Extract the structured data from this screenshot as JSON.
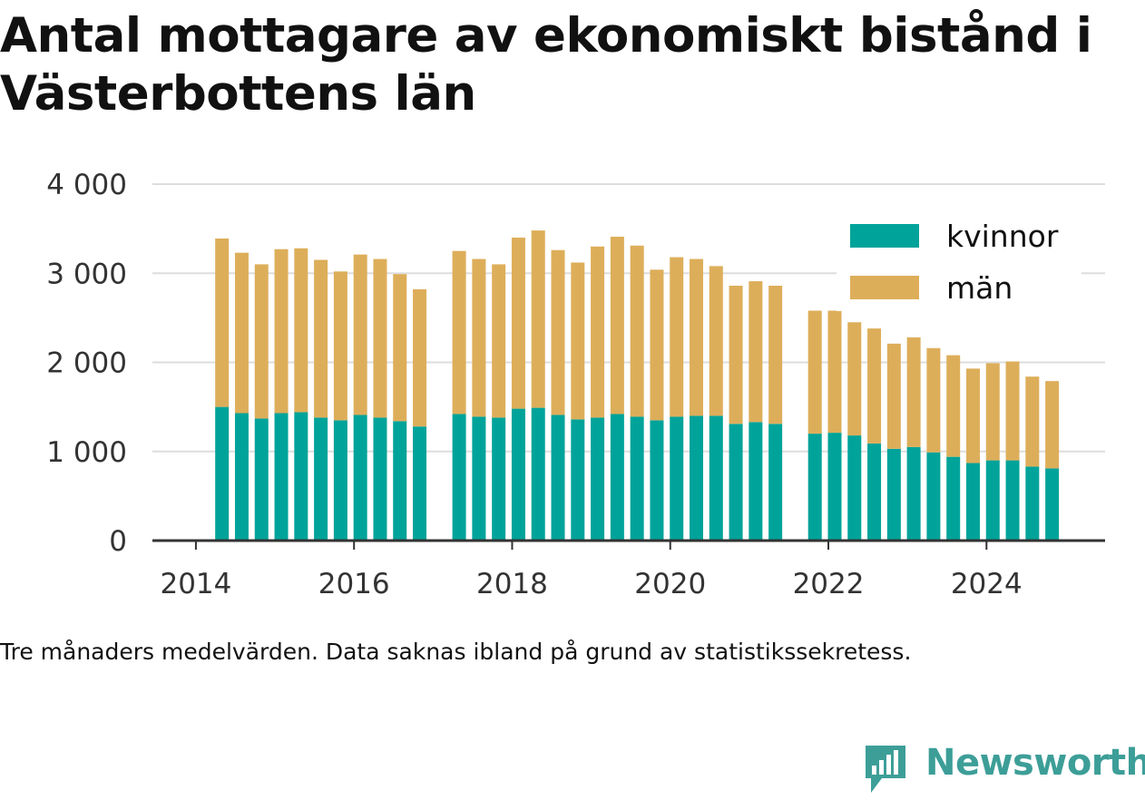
{
  "title": "Antal mottagare av ekonomiskt bistånd i Västerbottens län",
  "note": "Tre månaders medelvärden. Data saknas ibland på grund av statistikssekretess.",
  "brand": "Newsworthy",
  "colors": {
    "kvinnor": "#00a39a",
    "man": "#ddae5a",
    "grid": "#dddddd",
    "axis": "#333333",
    "brand": "#3d9e98"
  },
  "chart_data": {
    "type": "bar",
    "stacked": true,
    "legend_position": "top-right",
    "grid": true,
    "ylim": [
      0,
      4000
    ],
    "y_ticks": [
      {
        "value": 0,
        "label": "0"
      },
      {
        "value": 1000,
        "label": "1 000"
      },
      {
        "value": 2000,
        "label": "2 000"
      },
      {
        "value": 3000,
        "label": "3 000"
      },
      {
        "value": 4000,
        "label": "4 000"
      }
    ],
    "x_ticks": [
      {
        "value": 2014.0,
        "label": "2014"
      },
      {
        "value": 2016.0,
        "label": "2016"
      },
      {
        "value": 2018.0,
        "label": "2018"
      },
      {
        "value": 2020.0,
        "label": "2020"
      },
      {
        "value": 2022.0,
        "label": "2022"
      },
      {
        "value": 2024.0,
        "label": "2024"
      }
    ],
    "xlim": [
      2013.45,
      2025.5
    ],
    "x": [
      2014.33,
      2014.58,
      2014.83,
      2015.08,
      2015.33,
      2015.58,
      2015.83,
      2016.08,
      2016.33,
      2016.58,
      2016.83,
      2017.33,
      2017.58,
      2017.83,
      2018.08,
      2018.33,
      2018.58,
      2018.83,
      2019.08,
      2019.33,
      2019.58,
      2019.83,
      2020.08,
      2020.33,
      2020.58,
      2020.83,
      2021.08,
      2021.33,
      2021.83,
      2022.08,
      2022.33,
      2022.58,
      2022.83,
      2023.08,
      2023.33,
      2023.58,
      2023.83,
      2024.08,
      2024.33,
      2024.58,
      2024.83
    ],
    "series": [
      {
        "name": "kvinnor",
        "values": [
          1500,
          1430,
          1370,
          1430,
          1440,
          1380,
          1350,
          1410,
          1380,
          1340,
          1280,
          1420,
          1390,
          1380,
          1480,
          1490,
          1410,
          1360,
          1380,
          1420,
          1390,
          1350,
          1390,
          1400,
          1400,
          1310,
          1330,
          1310,
          1200,
          1210,
          1180,
          1090,
          1030,
          1050,
          990,
          940,
          870,
          900,
          900,
          830,
          810
        ]
      },
      {
        "name": "män",
        "values": [
          1890,
          1800,
          1730,
          1840,
          1840,
          1770,
          1670,
          1800,
          1780,
          1650,
          1540,
          1830,
          1770,
          1720,
          1920,
          1990,
          1850,
          1760,
          1920,
          1990,
          1920,
          1690,
          1790,
          1760,
          1680,
          1550,
          1580,
          1550,
          1380,
          1370,
          1270,
          1290,
          1180,
          1230,
          1170,
          1140,
          1060,
          1090,
          1110,
          1010,
          980
        ]
      }
    ]
  }
}
